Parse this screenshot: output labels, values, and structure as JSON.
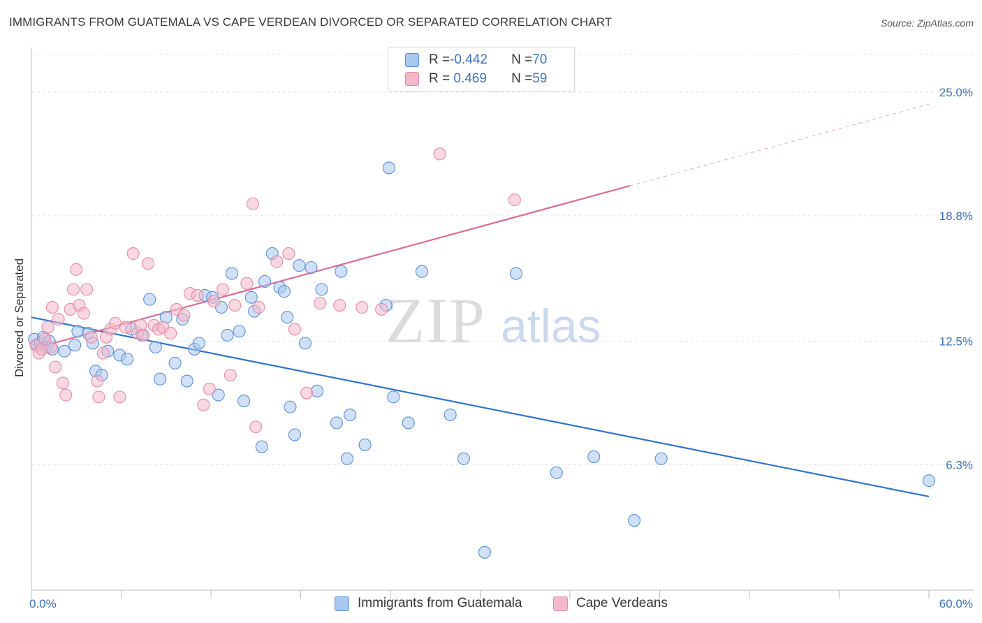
{
  "title": "IMMIGRANTS FROM GUATEMALA VS CAPE VERDEAN DIVORCED OR SEPARATED CORRELATION CHART",
  "source": "Source: ZipAtlas.com",
  "watermark": {
    "zip": "ZIP",
    "atlas": "atlas"
  },
  "legend": {
    "rows": [
      {
        "r_label": "R = ",
        "r_value": "-0.442",
        "n_label": "N = ",
        "n_value": "70",
        "color": "#a9c8f0"
      },
      {
        "r_label": "R = ",
        "r_value": " 0.469",
        "n_label": "N = ",
        "n_value": "59",
        "color": "#f4b8cb"
      }
    ]
  },
  "colors": {
    "blue_fill": "#a9c8f0",
    "blue_stroke": "#5a8fd6",
    "blue_line": "#2f74d0",
    "pink_fill": "#f4b8cb",
    "pink_stroke": "#e68aa7",
    "pink_line": "#e06a94",
    "axis_label": "#3b72c4",
    "grid": "#e3e3e3"
  },
  "chart_data": {
    "type": "scatter",
    "title": "IMMIGRANTS FROM GUATEMALA VS CAPE VERDEAN DIVORCED OR SEPARATED CORRELATION CHART",
    "xlabel": "",
    "ylabel": "Divorced or Separated",
    "xlim": [
      0,
      60
    ],
    "ylim": [
      0,
      27
    ],
    "x_tick_labels": [
      "0.0%",
      "60.0%"
    ],
    "y_ticks": [
      6.3,
      12.5,
      18.8,
      25.0
    ],
    "y_tick_labels": [
      "6.3%",
      "12.5%",
      "18.8%",
      "25.0%"
    ],
    "grid": true,
    "legend_position": "bottom",
    "series": [
      {
        "name": "Immigrants from Guatemala",
        "color": "#a9c8f0",
        "r": -0.442,
        "n": 70,
        "trend": {
          "x0": 0,
          "y0": 13.7,
          "x1": 60,
          "y1": 4.7
        },
        "points": [
          [
            0.2,
            12.6
          ],
          [
            0.4,
            12.3
          ],
          [
            0.6,
            12.4
          ],
          [
            0.8,
            12.7
          ],
          [
            1.0,
            12.2
          ],
          [
            1.2,
            12.5
          ],
          [
            1.4,
            12.1
          ],
          [
            2.2,
            12.0
          ],
          [
            2.9,
            12.3
          ],
          [
            3.1,
            13.0
          ],
          [
            3.8,
            12.9
          ],
          [
            4.1,
            12.4
          ],
          [
            4.3,
            11.0
          ],
          [
            4.7,
            10.8
          ],
          [
            5.1,
            12.0
          ],
          [
            5.9,
            11.8
          ],
          [
            6.4,
            11.6
          ],
          [
            6.7,
            13.1
          ],
          [
            7.4,
            12.8
          ],
          [
            7.9,
            14.6
          ],
          [
            8.3,
            12.2
          ],
          [
            8.6,
            10.6
          ],
          [
            9.0,
            13.7
          ],
          [
            9.6,
            11.4
          ],
          [
            10.1,
            13.6
          ],
          [
            10.4,
            10.5
          ],
          [
            10.9,
            12.1
          ],
          [
            11.2,
            12.4
          ],
          [
            11.6,
            14.8
          ],
          [
            12.1,
            14.7
          ],
          [
            12.5,
            9.8
          ],
          [
            12.7,
            14.2
          ],
          [
            13.1,
            12.8
          ],
          [
            13.4,
            15.9
          ],
          [
            13.9,
            13.0
          ],
          [
            14.2,
            9.5
          ],
          [
            14.7,
            14.7
          ],
          [
            14.9,
            14.0
          ],
          [
            15.4,
            7.2
          ],
          [
            15.6,
            15.5
          ],
          [
            16.1,
            16.9
          ],
          [
            16.6,
            15.2
          ],
          [
            16.9,
            15.0
          ],
          [
            17.1,
            13.7
          ],
          [
            17.3,
            9.2
          ],
          [
            17.6,
            7.8
          ],
          [
            17.9,
            16.3
          ],
          [
            18.3,
            12.4
          ],
          [
            18.7,
            16.2
          ],
          [
            19.1,
            10.0
          ],
          [
            19.4,
            15.1
          ],
          [
            20.4,
            8.4
          ],
          [
            20.7,
            16.0
          ],
          [
            21.1,
            6.6
          ],
          [
            21.3,
            8.8
          ],
          [
            22.3,
            7.3
          ],
          [
            23.7,
            14.3
          ],
          [
            23.9,
            21.2
          ],
          [
            24.2,
            9.7
          ],
          [
            25.2,
            8.4
          ],
          [
            26.1,
            16.0
          ],
          [
            28.0,
            8.8
          ],
          [
            28.9,
            6.6
          ],
          [
            32.4,
            15.9
          ],
          [
            35.1,
            5.9
          ],
          [
            37.6,
            6.7
          ],
          [
            40.3,
            3.5
          ],
          [
            42.1,
            6.6
          ],
          [
            60.0,
            5.5
          ],
          [
            30.3,
            1.9
          ]
        ]
      },
      {
        "name": "Cape Verdeans",
        "color": "#f4b8cb",
        "r": 0.469,
        "n": 59,
        "trend": {
          "x0": 0,
          "y0": 12.1,
          "x1": 40,
          "y1": 20.3
        },
        "points": [
          [
            0.3,
            12.3
          ],
          [
            0.5,
            11.9
          ],
          [
            0.7,
            12.1
          ],
          [
            0.9,
            12.6
          ],
          [
            1.1,
            13.2
          ],
          [
            1.3,
            12.2
          ],
          [
            1.4,
            14.2
          ],
          [
            1.6,
            11.2
          ],
          [
            1.8,
            13.6
          ],
          [
            2.1,
            10.4
          ],
          [
            2.3,
            9.8
          ],
          [
            2.6,
            14.1
          ],
          [
            2.8,
            15.1
          ],
          [
            3.0,
            16.1
          ],
          [
            3.2,
            14.3
          ],
          [
            3.5,
            13.9
          ],
          [
            3.7,
            15.1
          ],
          [
            4.0,
            12.7
          ],
          [
            4.4,
            10.5
          ],
          [
            4.5,
            9.7
          ],
          [
            4.8,
            11.9
          ],
          [
            5.0,
            12.7
          ],
          [
            5.3,
            13.1
          ],
          [
            5.6,
            13.4
          ],
          [
            5.9,
            9.7
          ],
          [
            6.3,
            13.2
          ],
          [
            6.8,
            16.9
          ],
          [
            7.1,
            12.9
          ],
          [
            7.3,
            13.3
          ],
          [
            7.5,
            12.8
          ],
          [
            7.8,
            16.4
          ],
          [
            8.2,
            13.3
          ],
          [
            8.5,
            13.1
          ],
          [
            8.8,
            13.2
          ],
          [
            9.3,
            12.9
          ],
          [
            9.7,
            14.1
          ],
          [
            10.2,
            13.8
          ],
          [
            10.6,
            14.9
          ],
          [
            11.1,
            14.8
          ],
          [
            11.5,
            9.3
          ],
          [
            11.9,
            10.1
          ],
          [
            12.2,
            14.5
          ],
          [
            12.8,
            15.1
          ],
          [
            13.3,
            10.8
          ],
          [
            13.6,
            14.3
          ],
          [
            14.4,
            15.4
          ],
          [
            14.8,
            19.4
          ],
          [
            15.0,
            8.2
          ],
          [
            15.2,
            14.2
          ],
          [
            16.4,
            16.5
          ],
          [
            17.2,
            16.9
          ],
          [
            17.6,
            13.1
          ],
          [
            18.4,
            9.9
          ],
          [
            19.3,
            14.4
          ],
          [
            20.6,
            14.3
          ],
          [
            22.1,
            14.2
          ],
          [
            23.4,
            14.1
          ],
          [
            27.3,
            21.9
          ],
          [
            32.3,
            19.6
          ]
        ]
      }
    ]
  },
  "bottom_legend": [
    {
      "label": "Immigrants from Guatemala",
      "color": "#a9c8f0"
    },
    {
      "label": "Cape Verdeans",
      "color": "#f4b8cb"
    }
  ]
}
